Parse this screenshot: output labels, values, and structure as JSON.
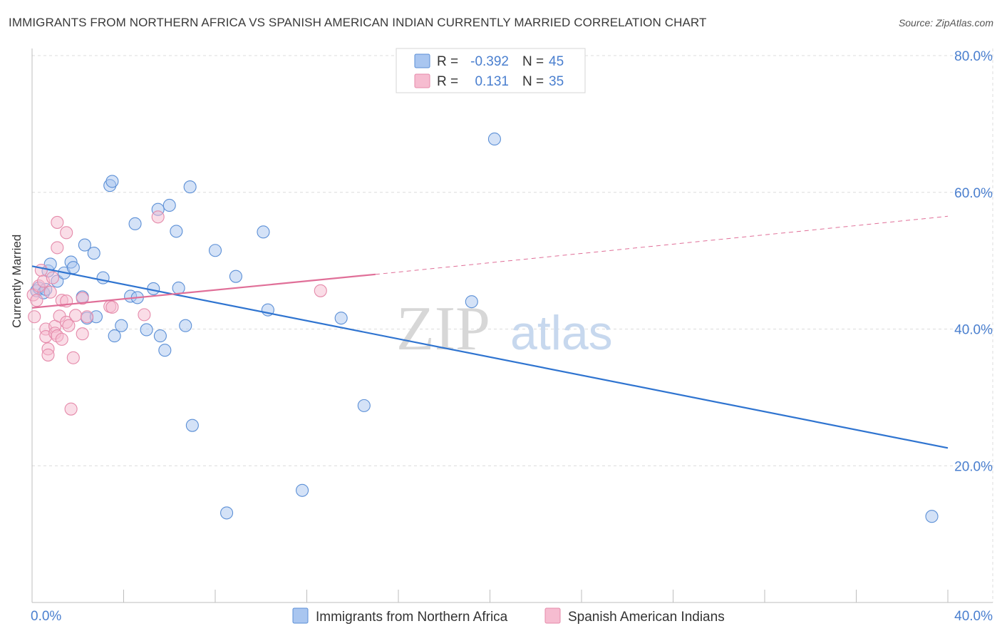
{
  "title": "IMMIGRANTS FROM NORTHERN AFRICA VS SPANISH AMERICAN INDIAN CURRENTLY MARRIED CORRELATION CHART",
  "source": "Source: ZipAtlas.com",
  "watermark": {
    "zip": "ZIP",
    "atlas": "atlas"
  },
  "colors": {
    "blue_fill": "#a9c6f0",
    "blue_stroke": "#5b8fd6",
    "blue_line": "#2f74d0",
    "pink_fill": "#f6bcd0",
    "pink_stroke": "#e58aaa",
    "pink_line": "#e06f98",
    "tick_label": "#4a7fcf",
    "grid": "#dcdcdc"
  },
  "legend": {
    "rows": [
      {
        "r_label": "R =",
        "r_value": "-0.392",
        "n_label": "N =",
        "n_value": "45",
        "series": "blue"
      },
      {
        "r_label": "R =",
        "r_value": "0.131",
        "n_label": "N =",
        "n_value": "35",
        "series": "pink"
      }
    ]
  },
  "chart_data": {
    "type": "scatter",
    "title": "IMMIGRANTS FROM NORTHERN AFRICA VS SPANISH AMERICAN INDIAN CURRENTLY MARRIED CORRELATION CHART",
    "xlabel": "",
    "ylabel": "Currently Married",
    "xlim": [
      0,
      40
    ],
    "ylim": [
      0,
      80
    ],
    "x_tick_labels": [
      "0.0%",
      "40.0%"
    ],
    "y_ticks": [
      20,
      40,
      60,
      80
    ],
    "y_tick_labels": [
      "20.0%",
      "40.0%",
      "60.0%",
      "80.0%"
    ],
    "grid": true,
    "legend_position": "top-center",
    "bottom_legend": [
      "Immigrants from Northern Africa",
      "Spanish American Indians"
    ],
    "series": [
      {
        "name": "Immigrants from Northern Africa",
        "color": "blue",
        "r": -0.392,
        "n": 45,
        "trend": {
          "x": [
            0.0,
            40.0
          ],
          "y": [
            49.2,
            22.6
          ]
        },
        "points": [
          [
            0.2,
            45.6
          ],
          [
            0.3,
            46.0
          ],
          [
            0.5,
            45.3
          ],
          [
            0.6,
            45.8
          ],
          [
            0.7,
            48.5
          ],
          [
            0.8,
            49.5
          ],
          [
            1.1,
            47.0
          ],
          [
            1.4,
            48.2
          ],
          [
            1.7,
            49.8
          ],
          [
            1.8,
            49.0
          ],
          [
            2.2,
            44.7
          ],
          [
            2.3,
            52.3
          ],
          [
            2.4,
            41.6
          ],
          [
            2.7,
            51.1
          ],
          [
            2.8,
            41.8
          ],
          [
            3.1,
            47.5
          ],
          [
            3.4,
            61.0
          ],
          [
            3.5,
            61.6
          ],
          [
            3.6,
            39.0
          ],
          [
            3.9,
            40.5
          ],
          [
            4.3,
            44.8
          ],
          [
            4.5,
            55.4
          ],
          [
            4.6,
            44.6
          ],
          [
            5.0,
            39.9
          ],
          [
            5.3,
            45.9
          ],
          [
            5.5,
            57.5
          ],
          [
            5.6,
            39.0
          ],
          [
            5.8,
            36.9
          ],
          [
            6.0,
            58.1
          ],
          [
            6.3,
            54.3
          ],
          [
            6.4,
            46.0
          ],
          [
            6.7,
            40.5
          ],
          [
            6.9,
            60.8
          ],
          [
            7.0,
            25.9
          ],
          [
            8.0,
            51.5
          ],
          [
            8.5,
            13.1
          ],
          [
            8.9,
            47.7
          ],
          [
            10.1,
            54.2
          ],
          [
            10.3,
            42.8
          ],
          [
            11.8,
            16.4
          ],
          [
            13.5,
            41.6
          ],
          [
            14.5,
            28.8
          ],
          [
            19.2,
            44.0
          ],
          [
            20.2,
            67.8
          ],
          [
            39.3,
            12.6
          ]
        ]
      },
      {
        "name": "Spanish American Indians",
        "color": "pink",
        "r": 0.131,
        "n": 35,
        "trend": {
          "x": [
            0.0,
            15.0
          ],
          "y": [
            43.1,
            48.0
          ]
        },
        "trend_extrapolated": {
          "x": [
            15.0,
            40.0
          ],
          "y": [
            48.0,
            56.5
          ]
        },
        "points": [
          [
            0.05,
            45.0
          ],
          [
            0.1,
            41.8
          ],
          [
            0.2,
            44.2
          ],
          [
            0.3,
            46.3
          ],
          [
            0.4,
            48.6
          ],
          [
            0.5,
            47.0
          ],
          [
            0.6,
            40.0
          ],
          [
            0.6,
            38.9
          ],
          [
            0.7,
            37.1
          ],
          [
            0.7,
            36.2
          ],
          [
            0.8,
            45.4
          ],
          [
            0.9,
            47.5
          ],
          [
            1.0,
            40.4
          ],
          [
            1.0,
            39.4
          ],
          [
            1.1,
            39.0
          ],
          [
            1.2,
            41.9
          ],
          [
            1.1,
            55.6
          ],
          [
            1.1,
            51.9
          ],
          [
            1.3,
            44.2
          ],
          [
            1.3,
            38.5
          ],
          [
            1.5,
            44.1
          ],
          [
            1.5,
            41.0
          ],
          [
            1.5,
            54.1
          ],
          [
            1.6,
            40.5
          ],
          [
            1.7,
            28.3
          ],
          [
            1.8,
            35.8
          ],
          [
            1.9,
            42.0
          ],
          [
            2.2,
            39.3
          ],
          [
            2.2,
            44.5
          ],
          [
            2.4,
            41.8
          ],
          [
            3.4,
            43.3
          ],
          [
            3.5,
            43.2
          ],
          [
            4.9,
            42.1
          ],
          [
            5.5,
            56.4
          ],
          [
            12.6,
            45.6
          ]
        ]
      }
    ]
  }
}
